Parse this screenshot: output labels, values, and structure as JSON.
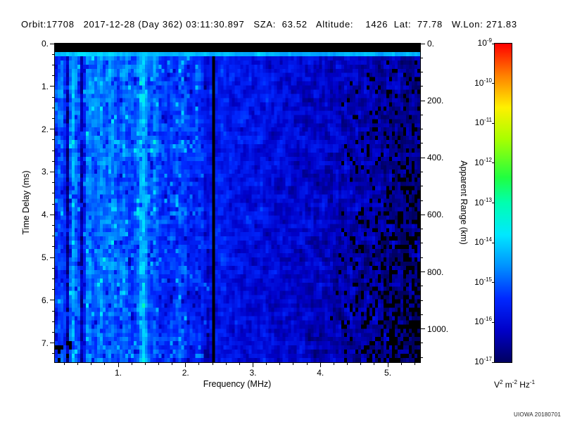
{
  "header": {
    "text": "Orbit:17708   2017-12-28 (Day 362) 03:11:30.897   SZA:  63.52   Altitude:    1426  Lat:  77.78   W.Lon: 271.83"
  },
  "watermark": "UIOWA 20180701",
  "chart_data": {
    "type": "heatmap",
    "x": {
      "label": "Frequency (MHz)",
      "min": 0.06,
      "max": 5.48,
      "major_ticks": [
        1,
        2,
        3,
        4,
        5
      ],
      "major_tick_labels": [
        "1.",
        "2.",
        "3.",
        "4.",
        "5."
      ],
      "minor_tick_step": 0.2
    },
    "y_left": {
      "label": "Time Delay (ms)",
      "min": 0,
      "max": 7.45,
      "major_ticks": [
        0,
        1,
        2,
        3,
        4,
        5,
        6,
        7
      ],
      "major_tick_labels": [
        "0.",
        "1.",
        "2.",
        "3.",
        "4.",
        "5.",
        "6.",
        "7."
      ],
      "minor_tick_step": 0.25
    },
    "y_right": {
      "label": "Apparent Range (km)",
      "km_per_ms": 149.9,
      "major_ticks_km": [
        0,
        200,
        400,
        600,
        800,
        1000
      ],
      "major_tick_labels": [
        "0.",
        "200.",
        "400.",
        "600.",
        "800.",
        "1000."
      ],
      "minor_tick_step_km": 50
    },
    "colorbar": {
      "scale": "log10",
      "exponent_min": -17,
      "exponent_max": -9,
      "tick_exponents": [
        -9,
        -10,
        -11,
        -12,
        -13,
        -14,
        -15,
        -16,
        -17
      ],
      "units_parts": [
        {
          "base": "V",
          "exp": "2"
        },
        {
          "base": "m",
          "exp": "-2"
        },
        {
          "base": "Hz",
          "exp": "-1"
        }
      ],
      "colormap": [
        [
          0.0,
          "#000060"
        ],
        [
          0.1,
          "#0000C8"
        ],
        [
          0.2,
          "#0028FF"
        ],
        [
          0.3,
          "#0090FF"
        ],
        [
          0.4,
          "#00E8FF"
        ],
        [
          0.5,
          "#00FFB0"
        ],
        [
          0.58,
          "#20FF40"
        ],
        [
          0.7,
          "#A8FF00"
        ],
        [
          0.8,
          "#FFF000"
        ],
        [
          0.9,
          "#FF8000"
        ],
        [
          1.0,
          "#FF0000"
        ]
      ]
    },
    "features": {
      "top_black_band": {
        "max_delay_ms": 0.16
      },
      "surface_line": {
        "max_delay_ms": 0.34,
        "value": -14.1,
        "slope_per_mhz": -0.05,
        "noise_amp": 0.5
      },
      "black_columns": [
        {
          "center": 2.42,
          "halfwidth": 0.035
        }
      ],
      "bright_columns": [
        {
          "center": 0.14,
          "sigma": 0.03,
          "amp": 0.5
        },
        {
          "center": 0.33,
          "sigma": 0.035,
          "amp": 0.8
        },
        {
          "center": 0.57,
          "sigma": 0.05,
          "amp": 0.55
        },
        {
          "center": 0.74,
          "sigma": 0.04,
          "amp": 0.6
        },
        {
          "center": 0.9,
          "sigma": 0.05,
          "amp": 0.55
        },
        {
          "center": 1.08,
          "sigma": 0.04,
          "amp": 0.45
        },
        {
          "center": 1.36,
          "sigma": 0.055,
          "amp": 1.15
        },
        {
          "center": 1.55,
          "sigma": 0.03,
          "amp": 0.5
        },
        {
          "center": 1.93,
          "sigma": 0.06,
          "amp": 0.4
        },
        {
          "center": 2.2,
          "sigma": 0.04,
          "amp": 0.25
        }
      ],
      "dark_columns": [
        {
          "center": 0.25,
          "sigma": 0.018,
          "amp": -1.3
        },
        {
          "center": 0.47,
          "sigma": 0.02,
          "amp": -1.6
        },
        {
          "center": 2.32,
          "sigma": 0.03,
          "amp": -0.45
        }
      ],
      "base_profile": [
        [
          0.06,
          -15.5
        ],
        [
          0.3,
          -15.1
        ],
        [
          0.9,
          -15.05
        ],
        [
          1.6,
          -15.2
        ],
        [
          2.4,
          -15.55
        ],
        [
          3.2,
          -15.8
        ],
        [
          4.2,
          -16.15
        ],
        [
          5.48,
          -16.55
        ]
      ],
      "noise_amp": 0.9,
      "speckle": {
        "max_freq_mhz": 2.35,
        "bright_prob": 0.05,
        "bright_boost": 0.85,
        "dark_prob": 0.06,
        "dark_drop": 0.7
      },
      "depth_dimming": 0.25,
      "right_black": {
        "start_mhz": 4.15,
        "base": 0.12,
        "depth_gain": 0.5,
        "max_prob": 0.6
      },
      "bottom_left_black": {
        "max_freq_mhz": 0.3,
        "min_delay_ms": 6.9,
        "prob": 0.22
      }
    },
    "render": {
      "seed": 20180701,
      "grid_cols": 130,
      "grid_rows": 76
    }
  }
}
